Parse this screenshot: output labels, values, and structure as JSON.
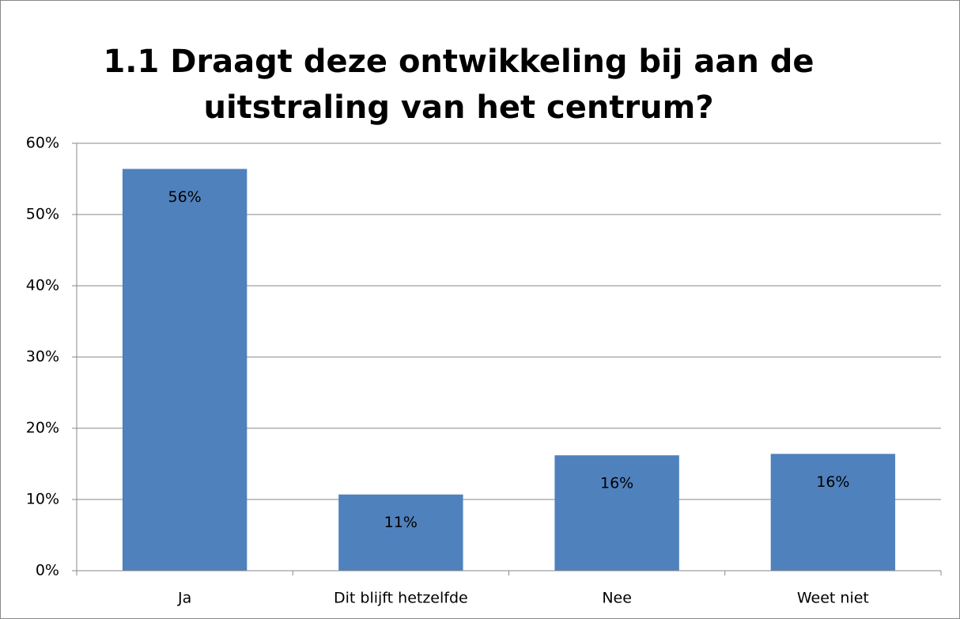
{
  "chart_data": {
    "type": "bar",
    "title": [
      "1.1 Draagt deze ontwikkeling bij aan de",
      "uitstraling van het centrum?"
    ],
    "categories": [
      "Ja",
      "Dit blijft hetzelfde",
      "Nee",
      "Weet niet"
    ],
    "values": [
      56.4,
      10.7,
      16.2,
      16.4
    ],
    "value_labels": [
      "56%",
      "11%",
      "16%",
      "16%"
    ],
    "color": "#4f81bd",
    "ylim": [
      0,
      60
    ],
    "yticks": [
      {
        "value": 0,
        "label": "0%"
      },
      {
        "value": 10,
        "label": "10%"
      },
      {
        "value": 20,
        "label": "20%"
      },
      {
        "value": 30,
        "label": "30%"
      },
      {
        "value": 40,
        "label": "40%"
      },
      {
        "value": 50,
        "label": "50%"
      },
      {
        "value": 60,
        "label": "60%"
      }
    ],
    "grid": true
  }
}
